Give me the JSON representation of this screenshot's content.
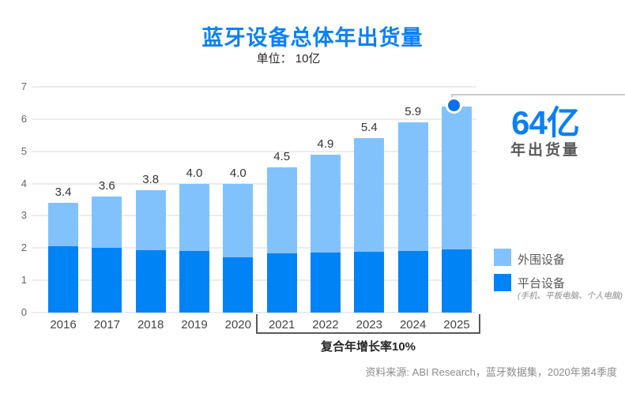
{
  "title": "蓝牙设备总体年出货量",
  "subtitle": "单位： 10亿",
  "colors": {
    "title_blue": "#0B80F6",
    "platform_blue": "#0083F5",
    "peripheral_blue": "#82C2FC",
    "dot_blue": "#0f6fe6",
    "callout_line": "#cccccc"
  },
  "callout": {
    "value": "64亿",
    "label": "年出货量"
  },
  "legend": [
    {
      "label": "外围设备",
      "sub": "",
      "color": "#82C2FC"
    },
    {
      "label": "平台设备",
      "sub": "(手机、平板电脑、个人电脑)",
      "color": "#0083F5"
    }
  ],
  "bracket": {
    "from": "2021",
    "to": "2025",
    "label": "复合年增长率10%"
  },
  "source": "资料来源: ABI Research，蓝牙数据集，2020年第4季度",
  "chart_data": {
    "type": "bar",
    "stacked": true,
    "title": "蓝牙设备总体年出货量",
    "subtitle": "单位： 10亿",
    "categories": [
      "2016",
      "2017",
      "2018",
      "2019",
      "2020",
      "2021",
      "2022",
      "2023",
      "2024",
      "2025"
    ],
    "series": [
      {
        "name": "平台设备",
        "color": "#0083F5",
        "values": [
          2.05,
          2.0,
          1.93,
          1.9,
          1.72,
          1.83,
          1.86,
          1.88,
          1.91,
          1.95
        ]
      },
      {
        "name": "外围设备",
        "color": "#82C2FC",
        "values": [
          1.35,
          1.6,
          1.87,
          2.1,
          2.28,
          2.67,
          3.04,
          3.52,
          3.99,
          4.45
        ]
      }
    ],
    "totals": [
      3.4,
      3.6,
      3.8,
      4.0,
      4.0,
      4.5,
      4.9,
      5.4,
      5.9,
      6.4
    ],
    "bar_labels": [
      "3.4",
      "3.6",
      "3.8",
      "4.0",
      "4.0",
      "4.5",
      "4.9",
      "5.4",
      "5.9",
      ""
    ],
    "xlabel": "",
    "ylabel": "",
    "ylim": [
      0,
      7
    ],
    "yticks": [
      0,
      1,
      2,
      3,
      4,
      5,
      6,
      7
    ],
    "grid": true,
    "legend_position": "right",
    "highlight": {
      "category": "2025",
      "value": 6.4,
      "marker": "dot",
      "callout_text": "64亿 年出货量"
    }
  }
}
